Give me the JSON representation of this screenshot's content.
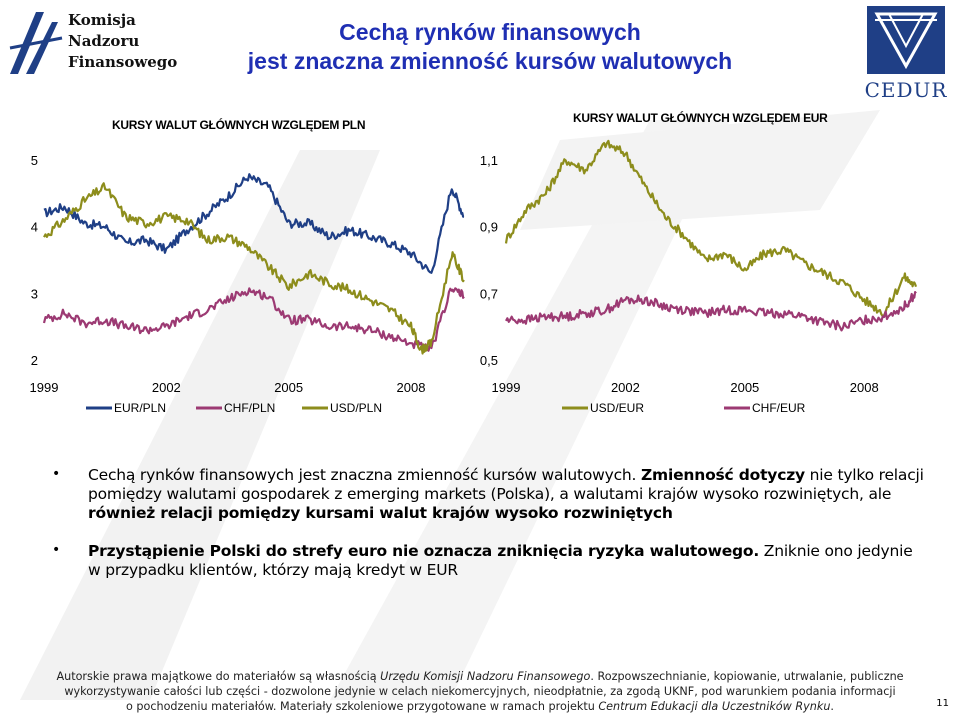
{
  "header": {
    "logo_left_lines": [
      "Komisja",
      "Nadzoru",
      "Finansowego"
    ],
    "logo_right": "CEDUR",
    "title_line1": "Cechą rynków finansowych",
    "title_line2": "jest znaczna zmienność kursów walutowych"
  },
  "colors": {
    "title": "#1f2fb3",
    "eur_pln": "#1f3f86",
    "chf_pln": "#9c3a73",
    "usd_pln": "#8d8d1c",
    "usd_eur": "#8d8d1c",
    "chf_eur": "#9c3a73",
    "cedur": "#1f3f86"
  },
  "chart_data": [
    {
      "type": "line",
      "title": "KURSY WALUT GŁÓWNYCH WZGLĘDEM PLN",
      "xlabel": "",
      "ylabel": "",
      "xlim": [
        1999,
        2009.3
      ],
      "ylim": [
        2,
        5
      ],
      "x_ticks": [
        "1999",
        "2002",
        "2005",
        "2008"
      ],
      "y_ticks": [
        "5",
        "4",
        "3",
        "2"
      ],
      "legend": [
        "EUR/PLN",
        "CHF/PLN",
        "USD/PLN"
      ],
      "legend_position": "bottom",
      "series": [
        {
          "name": "EUR/PLN",
          "x": [
            1999.0,
            1999.5,
            2000.0,
            2000.5,
            2001.0,
            2001.5,
            2002.0,
            2002.5,
            2003.0,
            2003.5,
            2004.0,
            2004.5,
            2005.0,
            2005.5,
            2006.0,
            2006.5,
            2007.0,
            2007.5,
            2008.0,
            2008.5,
            2009.0,
            2009.3
          ],
          "values": [
            4.2,
            4.3,
            4.05,
            4.0,
            3.75,
            3.8,
            3.65,
            3.95,
            4.2,
            4.45,
            4.75,
            4.6,
            4.05,
            4.05,
            3.85,
            3.95,
            3.85,
            3.75,
            3.6,
            3.3,
            4.6,
            4.15
          ]
        },
        {
          "name": "CHF/PLN",
          "x": [
            1999.0,
            1999.5,
            2000.0,
            2000.5,
            2001.0,
            2001.5,
            2002.0,
            2002.5,
            2003.0,
            2003.5,
            2004.0,
            2004.5,
            2005.0,
            2005.5,
            2006.0,
            2006.5,
            2007.0,
            2007.5,
            2008.0,
            2008.5,
            2009.0,
            2009.3
          ],
          "values": [
            2.6,
            2.7,
            2.55,
            2.6,
            2.5,
            2.45,
            2.5,
            2.65,
            2.75,
            2.9,
            3.05,
            2.95,
            2.6,
            2.6,
            2.5,
            2.5,
            2.45,
            2.35,
            2.25,
            2.15,
            3.1,
            2.95
          ]
        },
        {
          "name": "USD/PLN",
          "x": [
            1999.0,
            1999.5,
            2000.0,
            2000.5,
            2001.0,
            2001.5,
            2002.0,
            2002.5,
            2003.0,
            2003.5,
            2004.0,
            2004.5,
            2005.0,
            2005.5,
            2006.0,
            2006.5,
            2007.0,
            2007.5,
            2008.0,
            2008.25,
            2008.5,
            2009.0,
            2009.3
          ],
          "values": [
            3.85,
            4.1,
            4.4,
            4.6,
            4.15,
            4.05,
            4.15,
            4.1,
            3.8,
            3.85,
            3.7,
            3.4,
            3.1,
            3.3,
            3.15,
            3.05,
            2.9,
            2.75,
            2.5,
            2.15,
            2.25,
            3.6,
            3.2
          ]
        }
      ]
    },
    {
      "type": "line",
      "title": "KURSY WALUT GŁÓWNYCH WZGLĘDEM EUR",
      "xlabel": "",
      "ylabel": "",
      "xlim": [
        1999,
        2009.3
      ],
      "ylim": [
        0.5,
        1.1
      ],
      "x_ticks": [
        "1999",
        "2002",
        "2005",
        "2008"
      ],
      "y_ticks": [
        "1,1",
        "0,9",
        "0,7",
        "0,5"
      ],
      "legend": [
        "USD/EUR",
        "CHF/EUR"
      ],
      "legend_position": "bottom",
      "series": [
        {
          "name": "USD/EUR",
          "x": [
            1999.0,
            1999.5,
            2000.0,
            2000.5,
            2001.0,
            2001.5,
            2002.0,
            2002.5,
            2003.0,
            2003.5,
            2004.0,
            2004.5,
            2005.0,
            2005.5,
            2006.0,
            2006.5,
            2007.0,
            2007.5,
            2008.0,
            2008.5,
            2009.0,
            2009.3
          ],
          "values": [
            0.86,
            0.95,
            1.0,
            1.1,
            1.07,
            1.15,
            1.12,
            1.02,
            0.93,
            0.87,
            0.8,
            0.82,
            0.77,
            0.82,
            0.83,
            0.79,
            0.76,
            0.73,
            0.68,
            0.64,
            0.75,
            0.72
          ]
        },
        {
          "name": "CHF/EUR",
          "x": [
            1999.0,
            1999.5,
            2000.0,
            2000.5,
            2001.0,
            2001.5,
            2002.0,
            2002.5,
            2003.0,
            2003.5,
            2004.0,
            2004.5,
            2005.0,
            2005.5,
            2006.0,
            2006.5,
            2007.0,
            2007.5,
            2008.0,
            2008.5,
            2009.0,
            2009.3
          ],
          "values": [
            0.62,
            0.62,
            0.63,
            0.63,
            0.64,
            0.65,
            0.68,
            0.68,
            0.66,
            0.65,
            0.64,
            0.65,
            0.65,
            0.64,
            0.64,
            0.63,
            0.61,
            0.6,
            0.62,
            0.63,
            0.66,
            0.7
          ]
        }
      ]
    }
  ],
  "bullets": {
    "b1_plain1": "Cechą rynków finansowych jest znaczna zmienność kursów walutowych. ",
    "b1_bold1": "Zmienność dotyczy",
    "b1_plain2": " nie tylko relacji pomiędzy walutami gospodarek z emerging markets (Polska), a walutami krajów wysoko rozwiniętych, ale ",
    "b1_bold2": "również relacji pomiędzy kursami walut krajów wysoko rozwiniętych",
    "b2_bold": "Przystąpienie Polski do strefy euro nie oznacza zniknięcia ryzyka walutowego.",
    "b2_plain": " Zniknie ono jedynie w przypadku klientów, którzy mają kredyt w EUR"
  },
  "footer": {
    "line1_a": "Autorskie prawa majątkowe do materiałów są własnością ",
    "line1_i": "Urzędu Komisji Nadzoru Finansowego",
    "line1_b": ". Rozpowszechnianie, kopiowanie, utrwalanie, publiczne",
    "line2": "wykorzystywanie całości lub części - dozwolone jedynie w celach niekomercyjnych, nieodpłatnie, za zgodą UKNF, pod warunkiem podania informacji",
    "line3_a": "o pochodzeniu materiałów. Materiały szkoleniowe przygotowane w ramach projektu ",
    "line3_i": "Centrum Edukacji dla Uczestników Rynku",
    "line3_b": "."
  },
  "page_number": "11"
}
